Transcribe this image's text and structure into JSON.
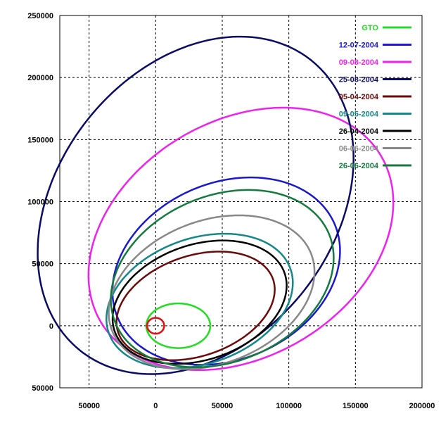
{
  "chart_data": {
    "type": "line",
    "title": "",
    "xlabel": "",
    "ylabel": "",
    "xlim": [
      -72000,
      200000
    ],
    "ylim": [
      -50000,
      250000
    ],
    "grid": true,
    "legend_position": "top-right",
    "x_ticks": [
      -50000,
      0,
      50000,
      100000,
      150000,
      200000
    ],
    "x_tick_labels": [
      "50000",
      "0",
      "50000",
      "100000",
      "150000",
      "200000"
    ],
    "y_ticks": [
      -50000,
      0,
      50000,
      100000,
      150000,
      200000,
      250000
    ],
    "y_tick_labels": [
      "50000",
      "0",
      "50000",
      "100000",
      "150000",
      "200000",
      "250000"
    ],
    "series": [
      {
        "name": "GTO",
        "color": "#22dd22",
        "ellipse": {
          "cx": 17000,
          "cy": 0,
          "rx": 24000,
          "ry": 18000,
          "angle_deg": 0
        }
      },
      {
        "name": "12-07-2004",
        "color": "#1a1acc",
        "ellipse": {
          "cx": 53000,
          "cy": 44000,
          "rx": 90000,
          "ry": 70000,
          "angle_deg": 30
        }
      },
      {
        "name": "09-08-2004",
        "color": "#ee22ee",
        "ellipse": {
          "cx": 64000,
          "cy": 70000,
          "rx": 125000,
          "ry": 93000,
          "angle_deg": 37
        }
      },
      {
        "name": "25-08-2004",
        "color": "#0b0b66",
        "ellipse": {
          "cx": 30000,
          "cy": 97000,
          "rx": 146000,
          "ry": 106000,
          "angle_deg": 58
        }
      },
      {
        "name": "05-04-2004",
        "color": "#6b0a0a",
        "ellipse": {
          "cx": 30000,
          "cy": 16000,
          "rx": 62000,
          "ry": 40000,
          "angle_deg": 22
        }
      },
      {
        "name": "09-05-2004",
        "color": "#148888",
        "ellipse": {
          "cx": 33000,
          "cy": 20000,
          "rx": 73000,
          "ry": 50000,
          "angle_deg": 23
        }
      },
      {
        "name": "26-04-2004",
        "color": "#000000",
        "ellipse": {
          "cx": 33000,
          "cy": 19000,
          "rx": 68000,
          "ry": 46000,
          "angle_deg": 22
        }
      },
      {
        "name": "06-06-2004",
        "color": "#888888",
        "ellipse": {
          "cx": 42000,
          "cy": 27000,
          "rx": 81000,
          "ry": 57000,
          "angle_deg": 25
        }
      },
      {
        "name": "26-06-2004",
        "color": "#157a3e",
        "ellipse": {
          "cx": 50000,
          "cy": 38000,
          "rx": 88000,
          "ry": 66000,
          "angle_deg": 28
        }
      },
      {
        "name": "",
        "color": "#dd1111",
        "ellipse": {
          "cx": 0,
          "cy": 0,
          "rx": 6400,
          "ry": 6400,
          "angle_deg": 0
        }
      }
    ]
  }
}
